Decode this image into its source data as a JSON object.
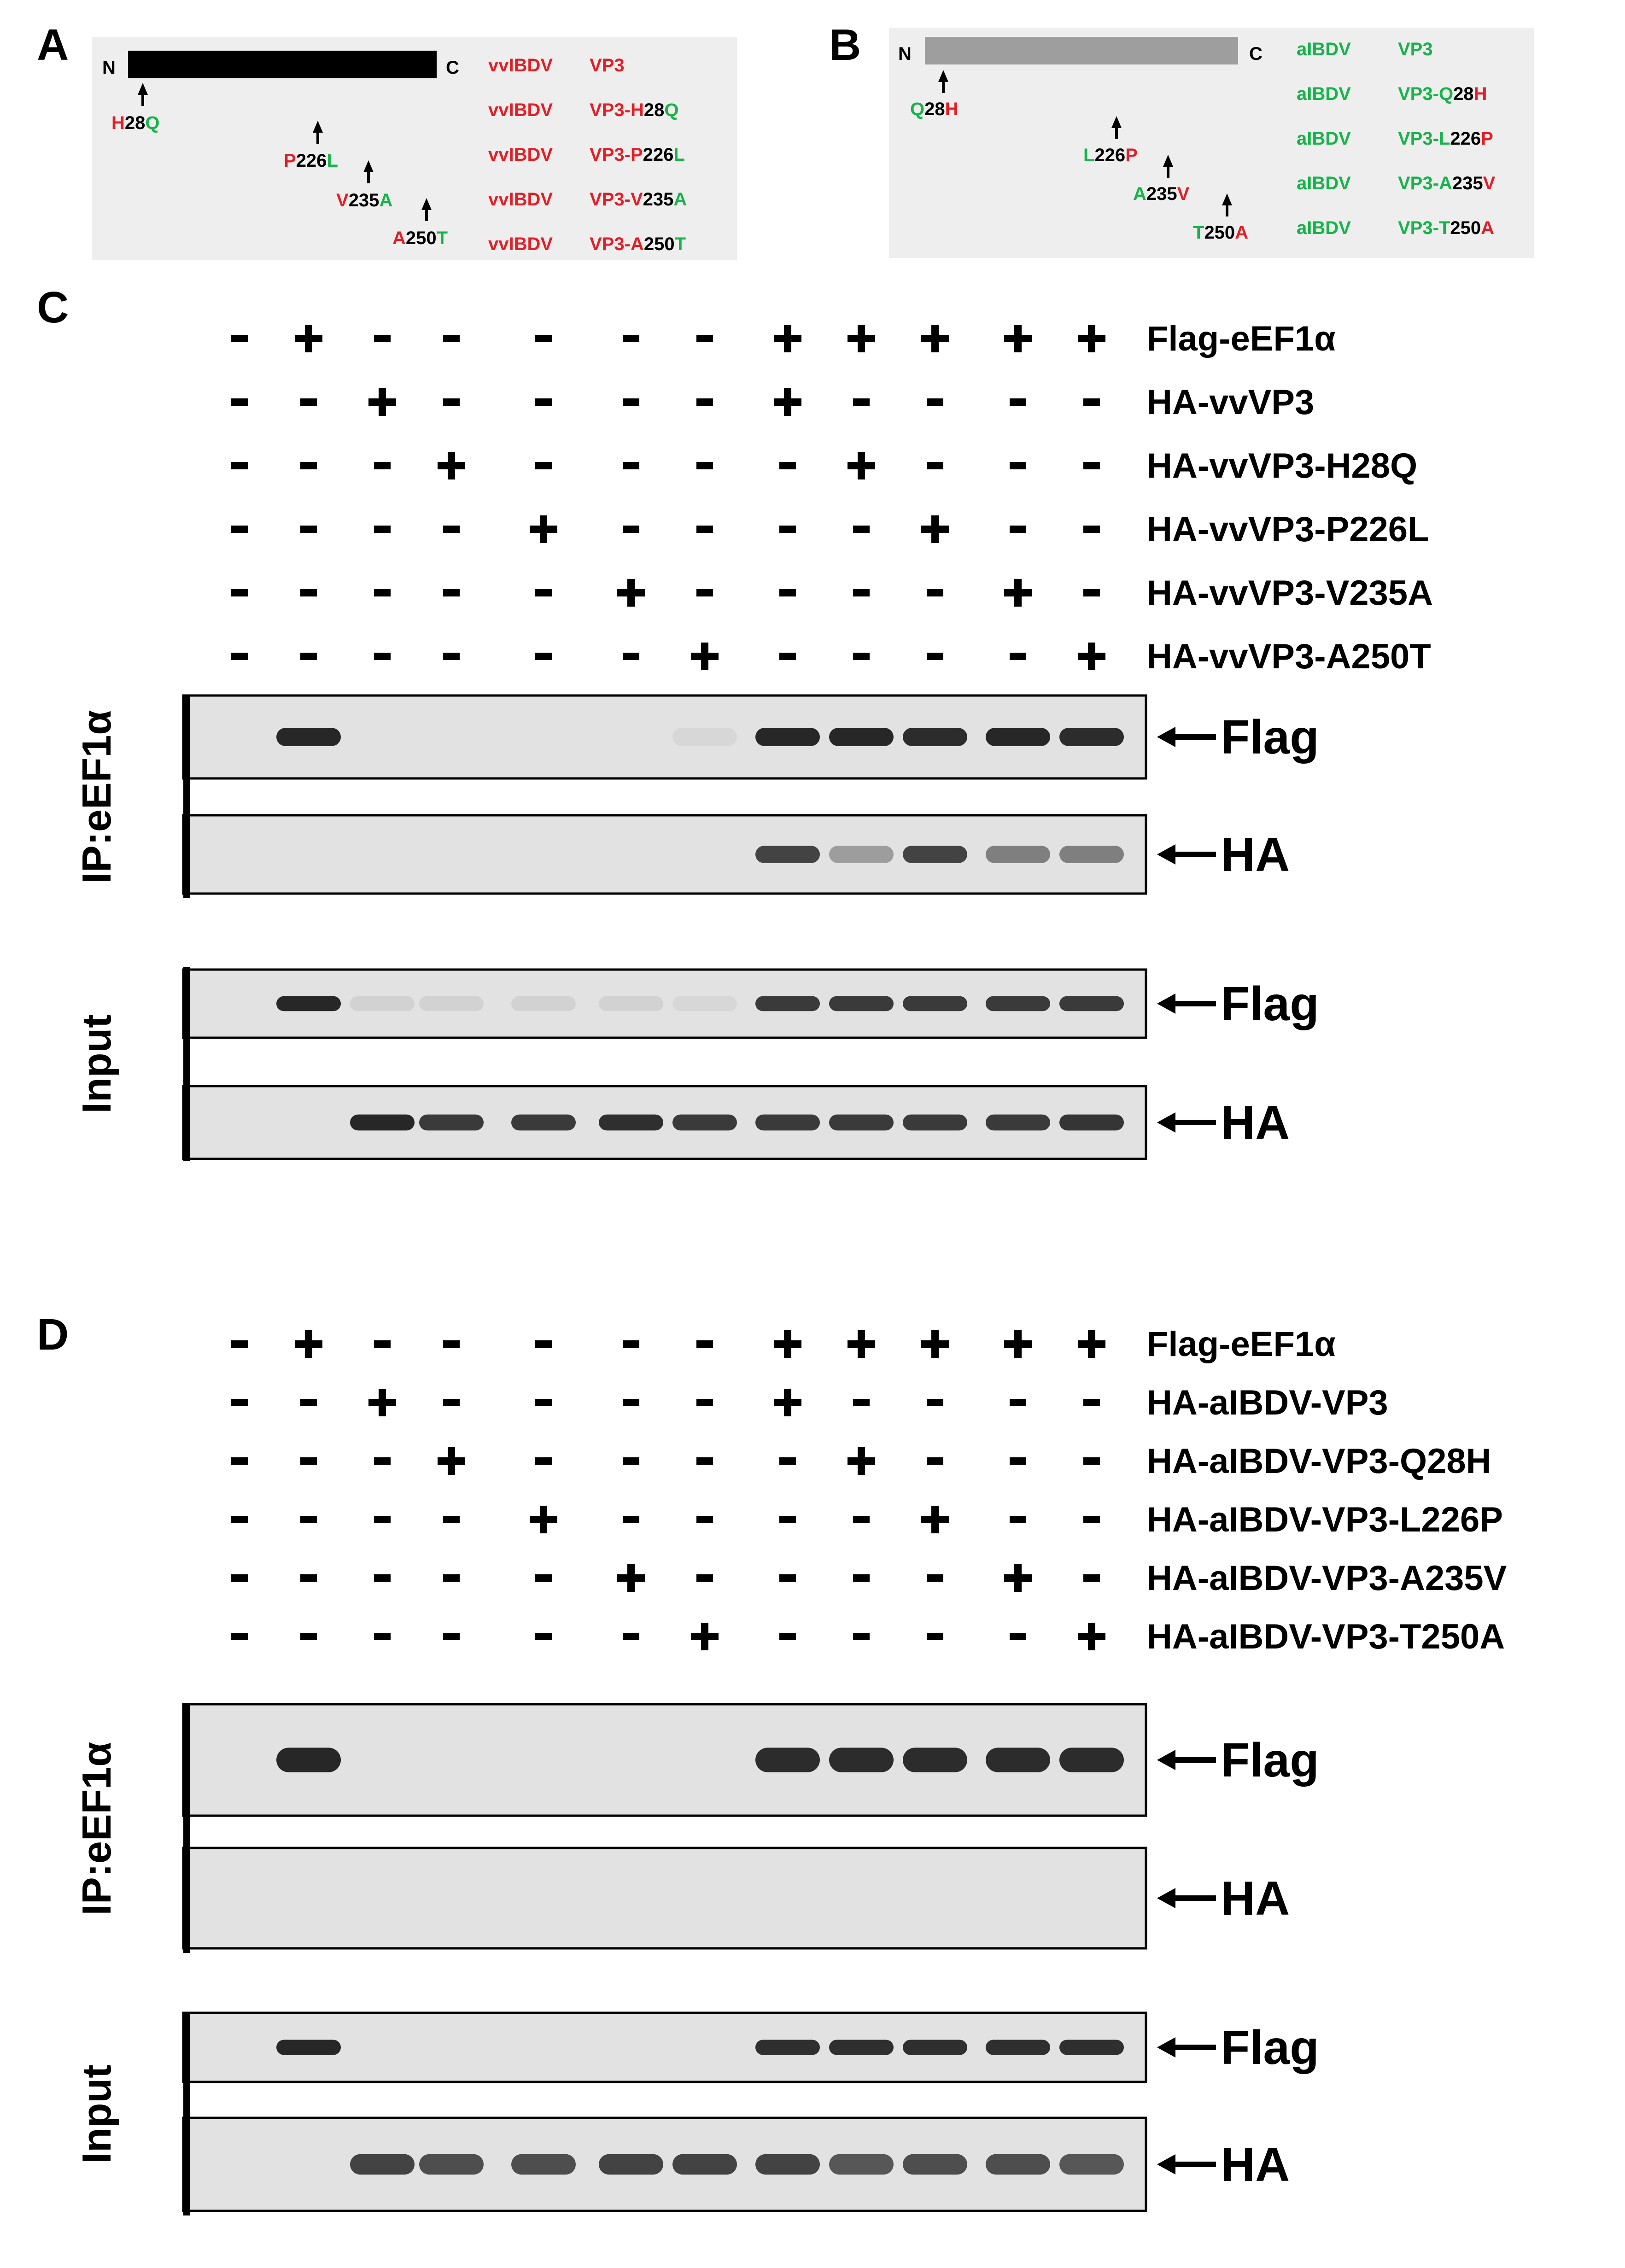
{
  "colors": {
    "red": "#e21e26",
    "green": "#17b34a",
    "black": "#000000",
    "gray_bar": "#9e9e9e",
    "panel_bg": "#eeeeee",
    "blot_bg": "#e2e2e2",
    "band": "#1c1c1c"
  },
  "panel_A": {
    "letter": "A",
    "n_label": "N",
    "c_label": "C",
    "mutations": [
      {
        "from": "H",
        "pos": "28",
        "to": "Q"
      },
      {
        "from": "P",
        "pos": "226",
        "to": "L"
      },
      {
        "from": "V",
        "pos": "235",
        "to": "A"
      },
      {
        "from": "A",
        "pos": "250",
        "to": "T"
      }
    ],
    "names": [
      {
        "strain": "vvIBDV",
        "prefix": "VP3",
        "from": "",
        "pos": "",
        "to": ""
      },
      {
        "strain": "vvIBDV",
        "prefix": "VP3-",
        "from": "H",
        "pos": "28",
        "to": "Q"
      },
      {
        "strain": "vvIBDV",
        "prefix": "VP3-",
        "from": "P",
        "pos": "226",
        "to": "L"
      },
      {
        "strain": "vvIBDV",
        "prefix": "VP3-",
        "from": "V",
        "pos": "235",
        "to": "A"
      },
      {
        "strain": "vvIBDV",
        "prefix": "VP3-",
        "from": "A",
        "pos": "250",
        "to": "T"
      }
    ]
  },
  "panel_B": {
    "letter": "B",
    "n_label": "N",
    "c_label": "C",
    "mutations": [
      {
        "from": "Q",
        "pos": "28",
        "to": "H"
      },
      {
        "from": "L",
        "pos": "226",
        "to": "P"
      },
      {
        "from": "A",
        "pos": "235",
        "to": "V"
      },
      {
        "from": "T",
        "pos": "250",
        "to": "A"
      }
    ],
    "names": [
      {
        "strain": "aIBDV",
        "prefix": "VP3",
        "from": "",
        "pos": "",
        "to": ""
      },
      {
        "strain": "aIBDV",
        "prefix": "VP3-",
        "from": "Q",
        "pos": "28",
        "to": "H"
      },
      {
        "strain": "aIBDV",
        "prefix": "VP3-",
        "from": "L",
        "pos": "226",
        "to": "P"
      },
      {
        "strain": "aIBDV",
        "prefix": "VP3-",
        "from": "A",
        "pos": "235",
        "to": "V"
      },
      {
        "strain": "aIBDV",
        "prefix": "VP3-",
        "from": "T",
        "pos": "250",
        "to": "A"
      }
    ]
  },
  "panel_C": {
    "letter": "C",
    "rows": [
      {
        "label": "Flag-eEF1α",
        "signs": [
          "-",
          "+",
          "-",
          "-",
          "-",
          "-",
          "-",
          "+",
          "+",
          "+",
          "+",
          "+"
        ]
      },
      {
        "label": "HA-vvVP3",
        "signs": [
          "-",
          "-",
          "+",
          "-",
          "-",
          "-",
          "-",
          "+",
          "-",
          "-",
          "-",
          "-"
        ]
      },
      {
        "label": "HA-vvVP3-H28Q",
        "signs": [
          "-",
          "-",
          "-",
          "+",
          "-",
          "-",
          "-",
          "-",
          "+",
          "-",
          "-",
          "-"
        ]
      },
      {
        "label": "HA-vvVP3-P226L",
        "signs": [
          "-",
          "-",
          "-",
          "-",
          "+",
          "-",
          "-",
          "-",
          "-",
          "+",
          "-",
          "-"
        ]
      },
      {
        "label": "HA-vvVP3-V235A",
        "signs": [
          "-",
          "-",
          "-",
          "-",
          "-",
          "+",
          "-",
          "-",
          "-",
          "-",
          "+",
          "-"
        ]
      },
      {
        "label": "HA-vvVP3-A250T",
        "signs": [
          "-",
          "-",
          "-",
          "-",
          "-",
          "-",
          "+",
          "-",
          "-",
          "-",
          "-",
          "+"
        ]
      }
    ],
    "ip_label": "IP:eEF1α",
    "input_label": "Input",
    "blots": [
      {
        "label": "Flag",
        "bands": [
          0,
          0.95,
          0,
          0,
          0,
          0,
          0.05,
          0.95,
          0.95,
          0.92,
          0.95,
          0.92
        ]
      },
      {
        "label": "HA",
        "bands": [
          0,
          0,
          0,
          0,
          0,
          0,
          0,
          0.8,
          0.35,
          0.8,
          0.5,
          0.5
        ]
      },
      {
        "label": "Flag",
        "bands": [
          0,
          0.95,
          0.08,
          0.08,
          0.08,
          0.08,
          0.05,
          0.85,
          0.85,
          0.85,
          0.85,
          0.85
        ]
      },
      {
        "label": "HA",
        "bands": [
          0,
          0,
          0.95,
          0.85,
          0.85,
          0.9,
          0.85,
          0.85,
          0.85,
          0.85,
          0.85,
          0.88
        ]
      }
    ]
  },
  "panel_D": {
    "letter": "D",
    "rows": [
      {
        "label": "Flag-eEF1α",
        "signs": [
          "-",
          "+",
          "-",
          "-",
          "-",
          "-",
          "-",
          "+",
          "+",
          "+",
          "+",
          "+"
        ]
      },
      {
        "label": "HA-aIBDV-VP3",
        "signs": [
          "-",
          "-",
          "+",
          "-",
          "-",
          "-",
          "-",
          "+",
          "-",
          "-",
          "-",
          "-"
        ]
      },
      {
        "label": "HA-aIBDV-VP3-Q28H",
        "signs": [
          "-",
          "-",
          "-",
          "+",
          "-",
          "-",
          "-",
          "-",
          "+",
          "-",
          "-",
          "-"
        ]
      },
      {
        "label": "HA-aIBDV-VP3-L226P",
        "signs": [
          "-",
          "-",
          "-",
          "-",
          "+",
          "-",
          "-",
          "-",
          "-",
          "+",
          "-",
          "-"
        ]
      },
      {
        "label": "HA-aIBDV-VP3-A235V",
        "signs": [
          "-",
          "-",
          "-",
          "-",
          "-",
          "+",
          "-",
          "-",
          "-",
          "-",
          "+",
          "-"
        ]
      },
      {
        "label": "HA-aIBDV-VP3-T250A",
        "signs": [
          "-",
          "-",
          "-",
          "-",
          "-",
          "-",
          "+",
          "-",
          "-",
          "-",
          "-",
          "+"
        ]
      }
    ],
    "ip_label": "IP:eEF1α",
    "input_label": "Input",
    "blots": [
      {
        "label": "Flag",
        "bands": [
          0,
          0.95,
          0,
          0,
          0,
          0,
          0,
          0.92,
          0.92,
          0.92,
          0.92,
          0.92
        ]
      },
      {
        "label": "HA",
        "bands": [
          0,
          0,
          0,
          0,
          0,
          0,
          0,
          0,
          0,
          0,
          0,
          0
        ]
      },
      {
        "label": "Flag",
        "bands": [
          0,
          0.95,
          0,
          0,
          0,
          0,
          0,
          0.9,
          0.9,
          0.9,
          0.9,
          0.9
        ]
      },
      {
        "label": "HA",
        "bands": [
          0,
          0,
          0.8,
          0.75,
          0.75,
          0.8,
          0.8,
          0.8,
          0.7,
          0.75,
          0.75,
          0.7
        ]
      }
    ]
  }
}
